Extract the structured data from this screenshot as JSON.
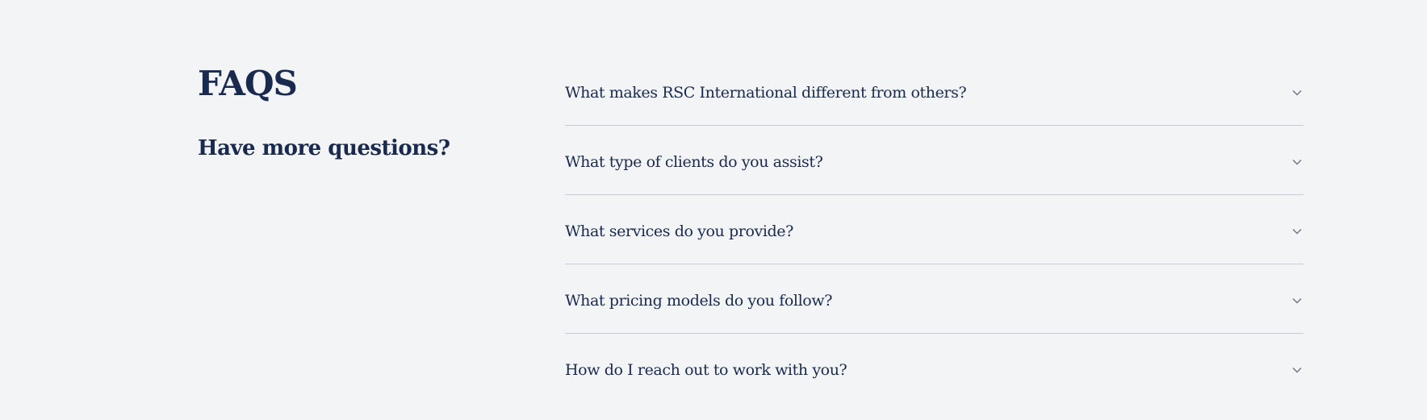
{
  "faq": {
    "title": "FAQS",
    "subtitle": "Have more questions?",
    "items": [
      {
        "question": "What makes RSC International different from others?"
      },
      {
        "question": "What type of clients do you assist?"
      },
      {
        "question": "What services do you provide?"
      },
      {
        "question": "What pricing models do you follow?"
      },
      {
        "question": "How do I reach out to work with you?"
      }
    ],
    "icon": "chevron-down-icon"
  },
  "colors": {
    "background": "#f2f4f6",
    "text": "#1a2a4f",
    "divider": "#c7ccd3",
    "chevron": "#6b7383"
  }
}
